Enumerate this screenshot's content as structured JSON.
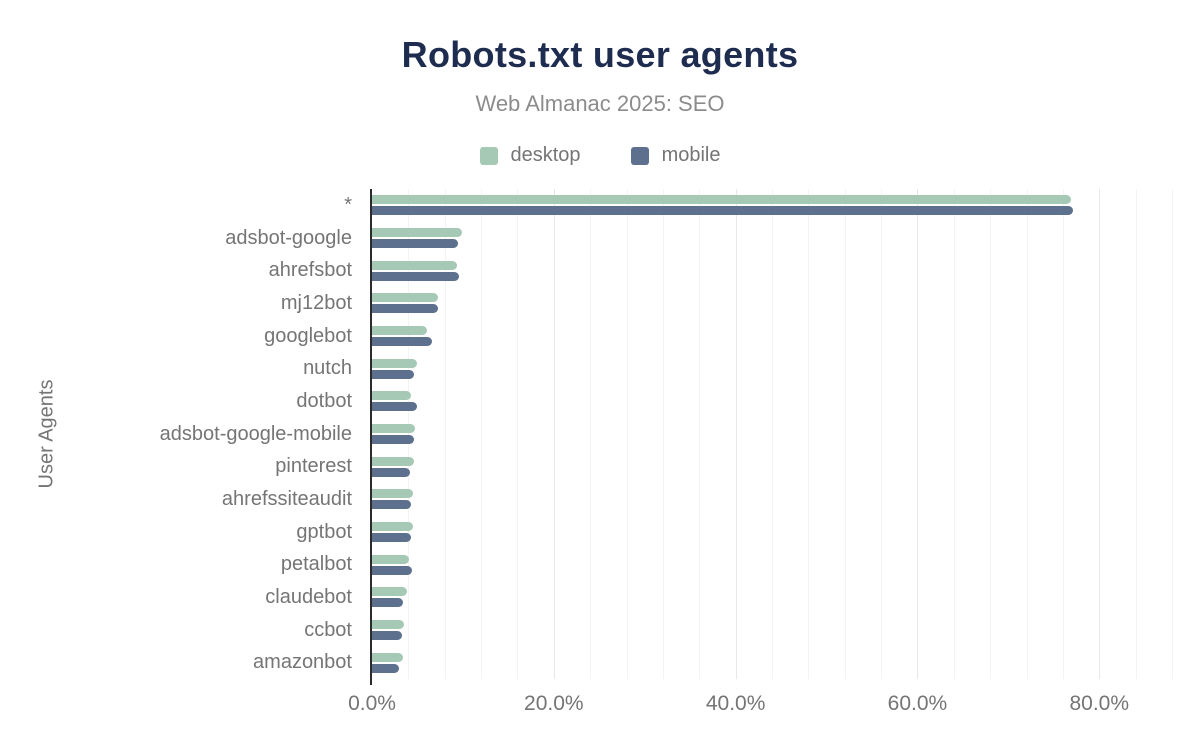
{
  "header": {
    "title": "Robots.txt user agents",
    "subtitle": "Web Almanac 2025: SEO"
  },
  "legend": [
    {
      "label": "desktop",
      "color": "#a6c9b6"
    },
    {
      "label": "mobile",
      "color": "#5d708e"
    }
  ],
  "y_axis_title": "User Agents",
  "colors": {
    "title": "#1e2c4f",
    "text_gray": "#757575",
    "subtitle_gray": "#8c8c8c",
    "axis_line": "#2b2b2b",
    "grid_minor": "#f3f3f3",
    "grid_major": "#e8e8e8",
    "background": "#ffffff",
    "desktop": "#a6c9b6",
    "mobile": "#5d708e"
  },
  "chart_data": {
    "type": "bar",
    "orientation": "horizontal",
    "title": "Robots.txt user agents",
    "subtitle": "Web Almanac 2025: SEO",
    "xlabel": "",
    "ylabel": "User Agents",
    "legend_position": "top",
    "grid": "vertical-minor",
    "categories": [
      "*",
      "adsbot-google",
      "ahrefsbot",
      "mj12bot",
      "googlebot",
      "nutch",
      "dotbot",
      "adsbot-google-mobile",
      "pinterest",
      "ahrefssiteaudit",
      "gptbot",
      "petalbot",
      "claudebot",
      "ccbot",
      "amazonbot"
    ],
    "series": [
      {
        "name": "desktop",
        "color": "#a6c9b6",
        "values": [
          76.9,
          9.9,
          9.4,
          7.3,
          6.1,
          5.0,
          4.3,
          4.7,
          4.6,
          4.5,
          4.5,
          4.1,
          3.8,
          3.5,
          3.4
        ]
      },
      {
        "name": "mobile",
        "color": "#5d708e",
        "values": [
          77.1,
          9.5,
          9.6,
          7.3,
          6.6,
          4.6,
          5.0,
          4.6,
          4.2,
          4.3,
          4.3,
          4.4,
          3.4,
          3.3,
          3.0
        ]
      }
    ],
    "x_ticks": [
      "0.0%",
      "20.0%",
      "40.0%",
      "60.0%",
      "80.0%"
    ],
    "x_tick_values": [
      0,
      20,
      40,
      60,
      80
    ],
    "xlim": [
      0,
      88
    ],
    "grid_minor_step": 4,
    "grid_major_step": 20,
    "unit": "percent"
  }
}
